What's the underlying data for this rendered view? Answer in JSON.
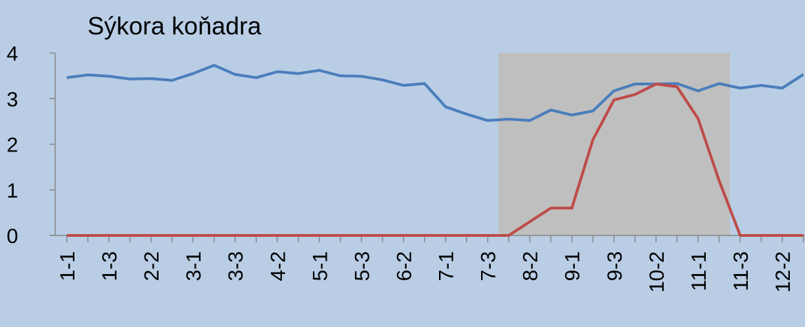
{
  "chart_data": {
    "type": "line",
    "title": "Sýkora koňadra",
    "categories": [
      "1-1",
      null,
      "1-3",
      null,
      "2-2",
      null,
      "3-1",
      null,
      "3-3",
      null,
      "4-2",
      null,
      "5-1",
      null,
      "5-3",
      null,
      "6-2",
      null,
      "7-1",
      null,
      "7-3",
      null,
      "8-2",
      null,
      "9-1",
      null,
      "9-3",
      null,
      "10-2",
      null,
      "11-1",
      null,
      "11-3",
      null,
      "12-2",
      null
    ],
    "series": [
      {
        "type": "bar",
        "color": "#bfbfbf",
        "values": [
          null,
          null,
          null,
          null,
          null,
          null,
          null,
          null,
          null,
          null,
          null,
          null,
          null,
          null,
          null,
          null,
          null,
          null,
          null,
          null,
          null,
          4,
          4,
          4,
          4,
          4,
          4,
          4,
          4,
          4,
          4,
          4,
          null,
          null,
          null,
          null
        ]
      },
      {
        "color": "#4a7ebb",
        "values": [
          3.46,
          3.52,
          3.49,
          3.43,
          3.44,
          3.4,
          3.55,
          3.73,
          3.53,
          3.46,
          3.59,
          3.55,
          3.62,
          3.5,
          3.49,
          3.41,
          3.29,
          3.33,
          2.82,
          2.66,
          2.52,
          2.55,
          2.52,
          2.75,
          2.64,
          2.73,
          3.17,
          3.32,
          3.32,
          3.33,
          3.17,
          3.33,
          3.23,
          3.29,
          3.23,
          3.53
        ]
      },
      {
        "color": "#be4b48",
        "values": [
          0,
          0,
          0,
          0,
          0,
          0,
          0,
          0,
          0,
          0,
          0,
          0,
          0,
          0,
          0,
          0,
          0,
          0,
          0,
          0,
          0,
          0,
          0.3,
          0.6,
          0.6,
          2.1,
          2.97,
          3.09,
          3.32,
          3.26,
          2.56,
          1.2,
          0,
          0,
          0,
          0
        ]
      }
    ],
    "ylim": [
      0,
      4
    ],
    "yticks": [
      0,
      1,
      2,
      3,
      4
    ]
  }
}
